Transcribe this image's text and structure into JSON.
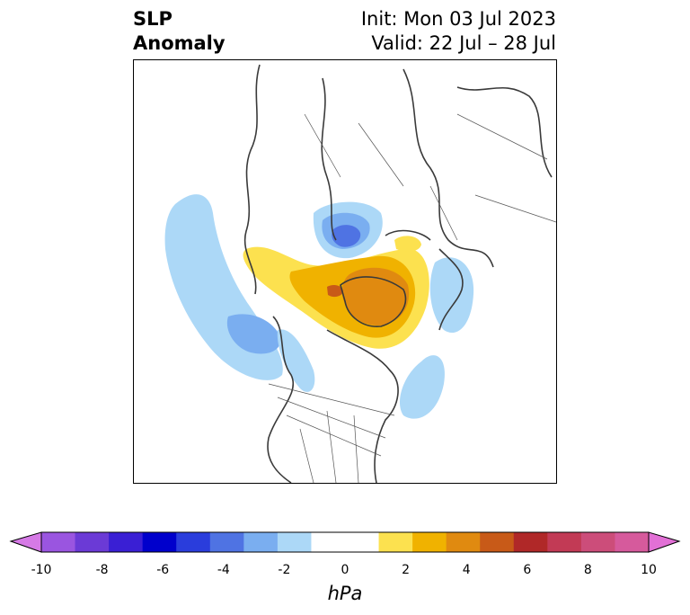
{
  "title": {
    "left_line1": "SLP",
    "left_line2": "Anomaly",
    "init": "Init: Mon 03 Jul 2023",
    "valid": "Valid: 22 Jul – 28 Jul"
  },
  "colorbar": {
    "unit": "hPa",
    "ticks": [
      "-10",
      "-8",
      "-6",
      "-4",
      "-2",
      "0",
      "2",
      "4",
      "6",
      "8",
      "10"
    ],
    "colors": [
      "#d67ae6",
      "#9a55e0",
      "#6b3ad6",
      "#3a1fd4",
      "#0000cc",
      "#2a3ddc",
      "#4f73e3",
      "#7aaef0",
      "#acd8f7",
      "#ffffff",
      "#ffffff",
      "#fce14f",
      "#f0b200",
      "#e08a10",
      "#c85a18",
      "#b02828",
      "#c23a55",
      "#cc4d7a",
      "#d65a9c",
      "#e270d6"
    ]
  }
}
